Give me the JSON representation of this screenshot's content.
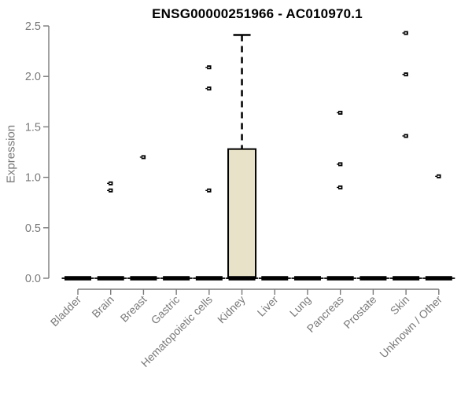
{
  "chart_data": {
    "type": "boxplot",
    "title": "ENSG00000251966 - AC010970.1",
    "ylabel": "Expression",
    "xlabel": "",
    "ylim": [
      0,
      2.5
    ],
    "ytick_labels": [
      "0.0",
      "0.5",
      "1.0",
      "1.5",
      "2.0",
      "2.5"
    ],
    "ytick_values": [
      0,
      0.5,
      1,
      1.5,
      2,
      2.5
    ],
    "grid": false,
    "legend": false,
    "categories": [
      "Bladder",
      "Brain",
      "Breast",
      "Gastric",
      "Hematopoietic cells",
      "Kidney",
      "Liver",
      "Lung",
      "Pancreas",
      "Prostate",
      "Skin",
      "Unknown / Other"
    ],
    "boxes": [
      {
        "category": "Bladder",
        "whisker_low": 0,
        "q1": 0,
        "median": 0,
        "q3": 0,
        "whisker_high": 0,
        "outliers": []
      },
      {
        "category": "Brain",
        "whisker_low": 0,
        "q1": 0,
        "median": 0,
        "q3": 0,
        "whisker_high": 0,
        "outliers": [
          0.94,
          0.87
        ]
      },
      {
        "category": "Breast",
        "whisker_low": 0,
        "q1": 0,
        "median": 0,
        "q3": 0,
        "whisker_high": 0,
        "outliers": [
          1.2
        ]
      },
      {
        "category": "Gastric",
        "whisker_low": 0,
        "q1": 0,
        "median": 0,
        "q3": 0,
        "whisker_high": 0,
        "outliers": []
      },
      {
        "category": "Hematopoietic cells",
        "whisker_low": 0,
        "q1": 0,
        "median": 0,
        "q3": 0,
        "whisker_high": 0,
        "outliers": [
          2.09,
          1.88,
          0.87
        ]
      },
      {
        "category": "Kidney",
        "whisker_low": 0,
        "q1": 0,
        "median": 0,
        "q3": 1.28,
        "whisker_high": 2.41,
        "outliers": []
      },
      {
        "category": "Liver",
        "whisker_low": 0,
        "q1": 0,
        "median": 0,
        "q3": 0,
        "whisker_high": 0,
        "outliers": []
      },
      {
        "category": "Lung",
        "whisker_low": 0,
        "q1": 0,
        "median": 0,
        "q3": 0,
        "whisker_high": 0,
        "outliers": []
      },
      {
        "category": "Pancreas",
        "whisker_low": 0,
        "q1": 0,
        "median": 0,
        "q3": 0,
        "whisker_high": 0,
        "outliers": [
          1.64,
          1.13,
          0.9
        ]
      },
      {
        "category": "Prostate",
        "whisker_low": 0,
        "q1": 0,
        "median": 0,
        "q3": 0,
        "whisker_high": 0,
        "outliers": []
      },
      {
        "category": "Skin",
        "whisker_low": 0,
        "q1": 0,
        "median": 0,
        "q3": 0,
        "whisker_high": 0,
        "outliers": [
          2.43,
          2.02,
          1.41
        ]
      },
      {
        "category": "Unknown / Other",
        "whisker_low": 0,
        "q1": 0,
        "median": 0,
        "q3": 0,
        "whisker_high": 0,
        "outliers": [
          1.01
        ]
      }
    ],
    "colors": {
      "box_fill": "#e8e3c8",
      "box_border": "#000000",
      "median": "#000000",
      "outlier": "#000000",
      "axis": "#7a7a7a",
      "tick_label": "#7a7a7a",
      "title": "#000000",
      "background": "#ffffff"
    }
  }
}
